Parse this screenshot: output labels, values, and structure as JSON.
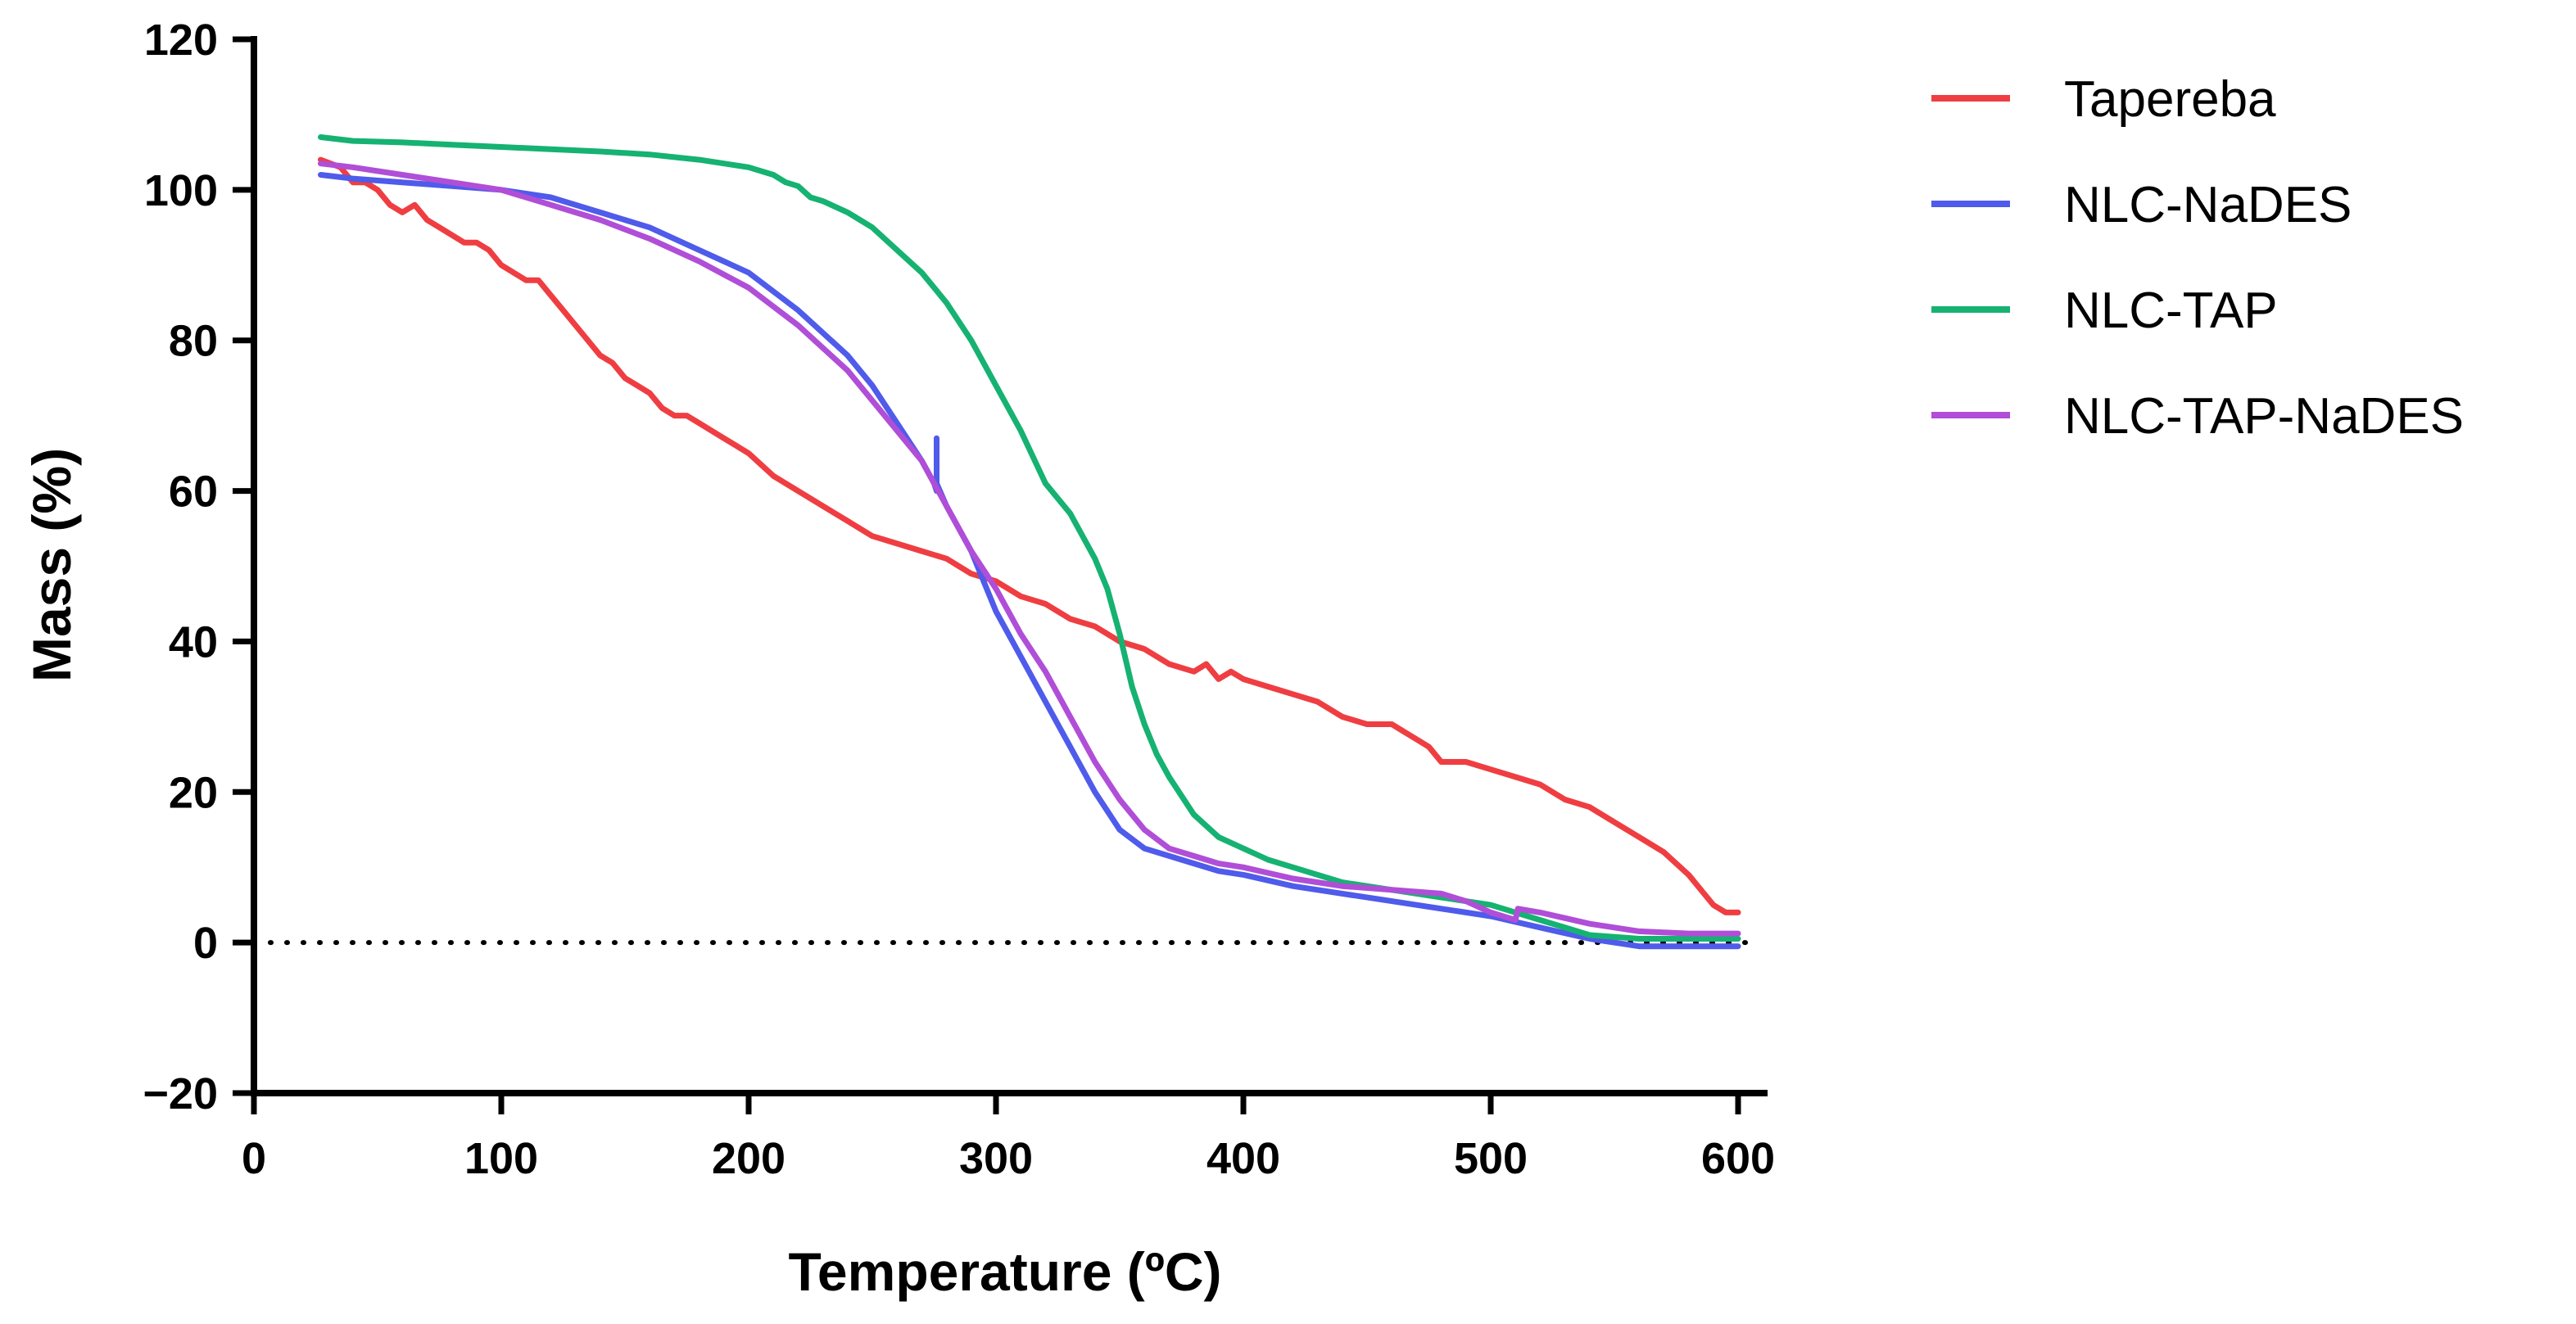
{
  "chart_data": {
    "type": "line",
    "title": "",
    "xlabel": "Temperature (ºC)",
    "ylabel": "Mass  (%)",
    "xlim": [
      0,
      600
    ],
    "ylim": [
      -20,
      120
    ],
    "xticks": [
      0,
      100,
      200,
      300,
      400,
      500,
      600
    ],
    "xtick_labels": [
      "0",
      "100",
      "200",
      "300",
      "400",
      "500",
      "600"
    ],
    "yticks": [
      -20,
      0,
      20,
      40,
      60,
      80,
      100,
      120
    ],
    "ytick_labels": [
      "−20",
      "0",
      "20",
      "40",
      "60",
      "80",
      "100",
      "120"
    ],
    "grid": false,
    "legend_position": "right",
    "reference_line": {
      "y": 0,
      "style": "dotted",
      "color": "#000000"
    },
    "series": [
      {
        "name": "Tapereba",
        "color": "#ef3e42",
        "x": [
          27,
          35,
          40,
          45,
          50,
          55,
          60,
          65,
          70,
          75,
          80,
          85,
          90,
          95,
          100,
          105,
          110,
          115,
          120,
          125,
          130,
          135,
          140,
          145,
          150,
          155,
          160,
          165,
          170,
          175,
          180,
          185,
          190,
          195,
          200,
          210,
          220,
          230,
          240,
          250,
          260,
          270,
          280,
          290,
          300,
          310,
          320,
          330,
          340,
          350,
          360,
          370,
          380,
          385,
          390,
          395,
          400,
          410,
          420,
          430,
          440,
          450,
          460,
          465,
          470,
          475,
          480,
          490,
          500,
          510,
          520,
          530,
          540,
          550,
          560,
          570,
          580,
          585,
          590,
          595,
          600
        ],
        "values": [
          104,
          103,
          101,
          101,
          100,
          98,
          97,
          98,
          96,
          95,
          94,
          93,
          93,
          92,
          90,
          89,
          88,
          88,
          86,
          84,
          82,
          80,
          78,
          77,
          75,
          74,
          73,
          71,
          70,
          70,
          69,
          68,
          67,
          66,
          65,
          62,
          60,
          58,
          56,
          54,
          53,
          52,
          51,
          49,
          48,
          46,
          45,
          43,
          42,
          40,
          39,
          37,
          36,
          37,
          35,
          36,
          35,
          34,
          33,
          32,
          30,
          29,
          29,
          28,
          27,
          26,
          24,
          24,
          23,
          22,
          21,
          19,
          18,
          16,
          14,
          12,
          9,
          7,
          5,
          4,
          4
        ]
      },
      {
        "name": "NLC-NaDES",
        "color": "#4f5bea",
        "x": [
          27,
          40,
          60,
          80,
          100,
          120,
          140,
          160,
          180,
          200,
          220,
          240,
          250,
          260,
          270,
          275,
          276,
          276,
          276,
          280,
          290,
          300,
          310,
          320,
          330,
          340,
          350,
          360,
          370,
          380,
          390,
          400,
          420,
          440,
          460,
          480,
          500,
          520,
          540,
          560,
          580,
          600
        ],
        "values": [
          102,
          101.5,
          101,
          100.5,
          100,
          99,
          97,
          95,
          92,
          89,
          84,
          78,
          74,
          69,
          64,
          61,
          60,
          67,
          61,
          58,
          52,
          44,
          38,
          32,
          26,
          20,
          15,
          12.5,
          11.5,
          10.5,
          9.5,
          9,
          7.5,
          6.5,
          5.5,
          4.5,
          3.5,
          2,
          0.5,
          -0.5,
          -0.5,
          -0.5
        ]
      },
      {
        "name": "NLC-TAP",
        "color": "#16b272",
        "x": [
          27,
          40,
          60,
          80,
          100,
          120,
          140,
          160,
          180,
          200,
          210,
          215,
          220,
          225,
          230,
          240,
          250,
          260,
          270,
          280,
          290,
          300,
          310,
          320,
          330,
          340,
          345,
          350,
          355,
          360,
          365,
          370,
          375,
          380,
          390,
          400,
          410,
          420,
          440,
          460,
          480,
          500,
          520,
          540,
          560,
          580,
          600
        ],
        "values": [
          107,
          106.5,
          106.3,
          106,
          105.7,
          105.4,
          105.1,
          104.7,
          104,
          103,
          102,
          101,
          100.5,
          99,
          98.5,
          97,
          95,
          92,
          89,
          85,
          80,
          74,
          68,
          61,
          57,
          51,
          47,
          41,
          34,
          29,
          25,
          22,
          19.5,
          17,
          14,
          12.5,
          11,
          10,
          8,
          7,
          6,
          5,
          3,
          1,
          0.5,
          0.5,
          0.5
        ]
      },
      {
        "name": "NLC-TAP-NaDES",
        "color": "#b04ed8",
        "x": [
          27,
          40,
          60,
          80,
          100,
          120,
          140,
          160,
          180,
          200,
          220,
          240,
          260,
          270,
          280,
          290,
          300,
          310,
          320,
          330,
          340,
          350,
          360,
          370,
          380,
          390,
          400,
          420,
          440,
          460,
          480,
          490,
          500,
          505,
          510,
          511,
          520,
          540,
          560,
          580,
          600
        ],
        "values": [
          103.5,
          103,
          102,
          101,
          100,
          98,
          96,
          93.5,
          90.5,
          87,
          82,
          76,
          68,
          64,
          58,
          52,
          47,
          41,
          36,
          30,
          24,
          19,
          15,
          12.5,
          11.5,
          10.5,
          10,
          8.5,
          7.5,
          7,
          6.5,
          5.5,
          4,
          3.5,
          3,
          4.5,
          4,
          2.5,
          1.5,
          1.2,
          1.2
        ]
      }
    ]
  }
}
